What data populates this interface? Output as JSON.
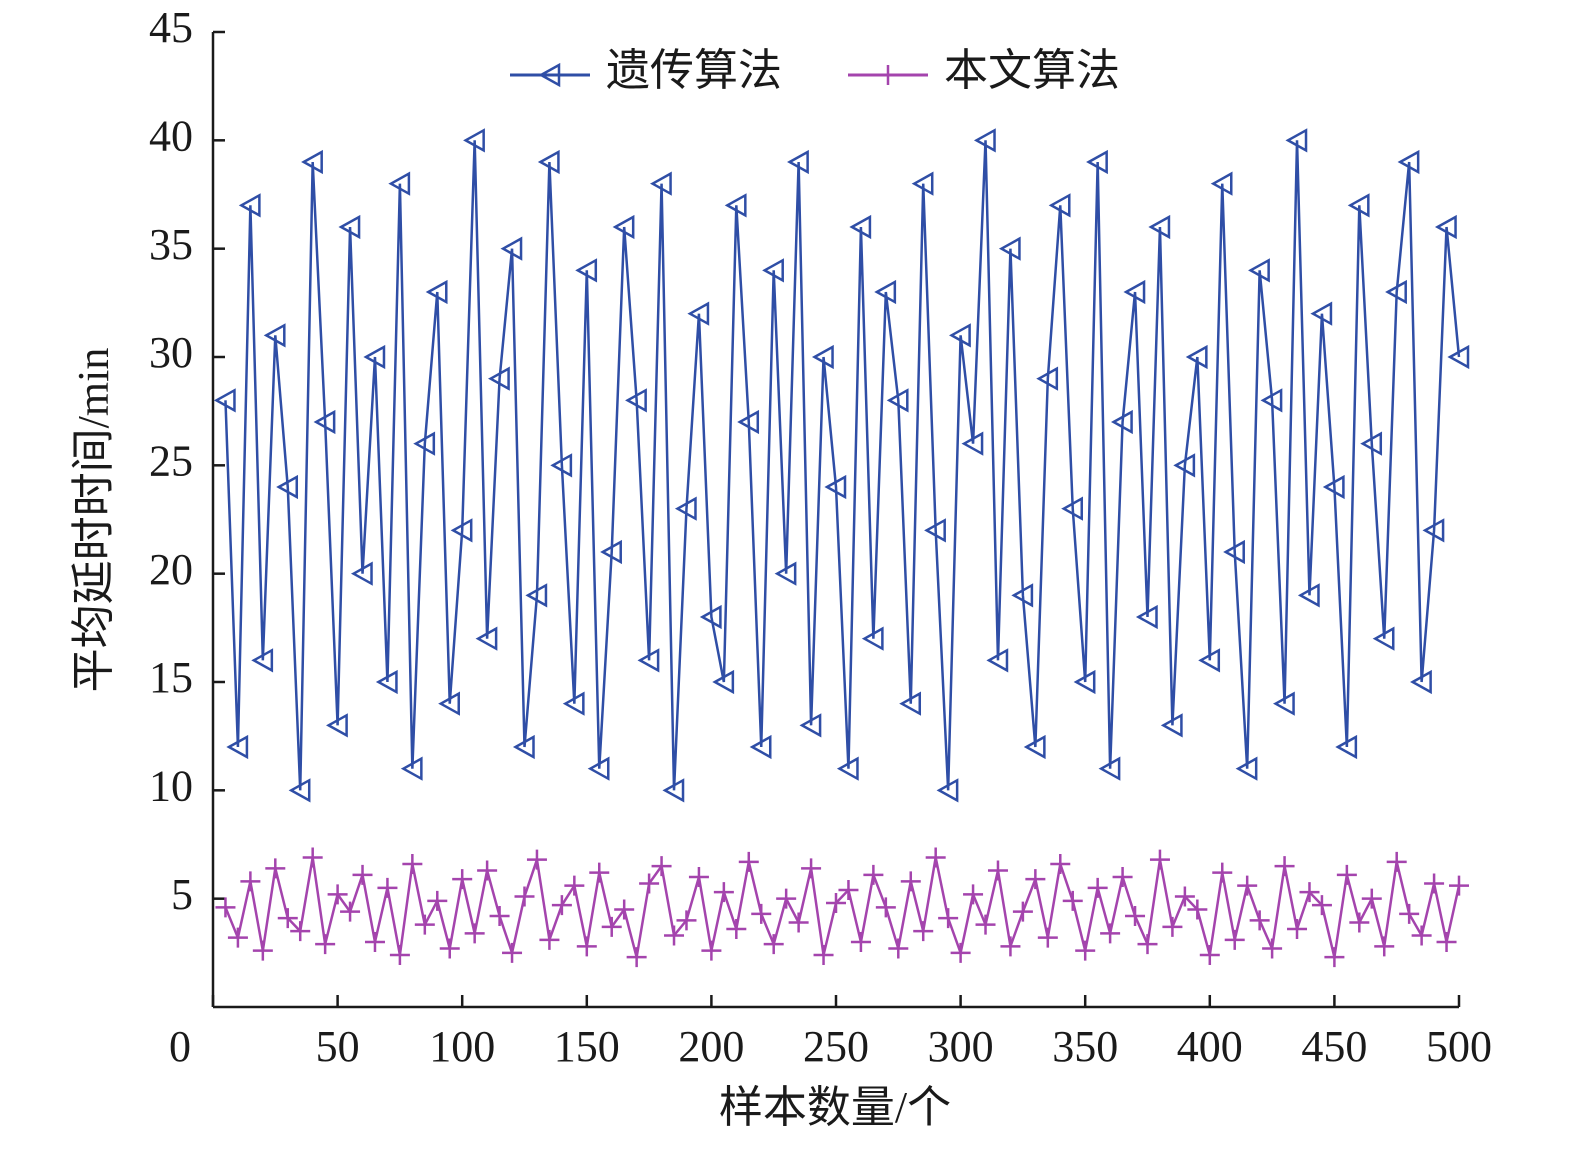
{
  "chart_data": {
    "type": "line",
    "xlabel": "样本数量/个",
    "ylabel": "平均延时时间/min",
    "x": [
      5,
      10,
      15,
      20,
      25,
      30,
      35,
      40,
      45,
      50,
      55,
      60,
      65,
      70,
      75,
      80,
      85,
      90,
      95,
      100,
      105,
      110,
      115,
      120,
      125,
      130,
      135,
      140,
      145,
      150,
      155,
      160,
      165,
      170,
      175,
      180,
      185,
      190,
      195,
      200,
      205,
      210,
      215,
      220,
      225,
      230,
      235,
      240,
      245,
      250,
      255,
      260,
      265,
      270,
      275,
      280,
      285,
      290,
      295,
      300,
      305,
      310,
      315,
      320,
      325,
      330,
      335,
      340,
      345,
      350,
      355,
      360,
      365,
      370,
      375,
      380,
      385,
      390,
      395,
      400,
      405,
      410,
      415,
      420,
      425,
      430,
      435,
      440,
      445,
      450,
      455,
      460,
      465,
      470,
      475,
      480,
      485,
      490,
      495,
      500
    ],
    "series": [
      {
        "name": "遗传算法",
        "color": "#2f4ea6",
        "marker": "triangle-left",
        "values": [
          28,
          12,
          37,
          16,
          31,
          24,
          10,
          39,
          27,
          13,
          36,
          20,
          30,
          15,
          38,
          11,
          26,
          33,
          14,
          22,
          40,
          17,
          29,
          35,
          12,
          19,
          39,
          25,
          14,
          34,
          11,
          21,
          36,
          28,
          16,
          38,
          10,
          23,
          32,
          18,
          15,
          37,
          27,
          12,
          34,
          20,
          39,
          13,
          30,
          24,
          11,
          36,
          17,
          33,
          28,
          14,
          38,
          22,
          10,
          31,
          26,
          40,
          16,
          35,
          19,
          12,
          29,
          37,
          23,
          15,
          39,
          11,
          27,
          33,
          18,
          36,
          13,
          25,
          30,
          16,
          38,
          21,
          11,
          34,
          28,
          14,
          40,
          19,
          32,
          24,
          12,
          37,
          26,
          17,
          33,
          39,
          15,
          22,
          36,
          30
        ]
      },
      {
        "name": "本文算法",
        "color": "#a444ad",
        "marker": "plus",
        "values": [
          4.6,
          3.2,
          5.8,
          2.6,
          6.4,
          4.1,
          3.5,
          6.9,
          2.9,
          5.2,
          4.4,
          6.1,
          3.0,
          5.5,
          2.4,
          6.6,
          3.8,
          4.9,
          2.7,
          5.9,
          3.4,
          6.3,
          4.2,
          2.5,
          5.1,
          6.8,
          3.1,
          4.7,
          5.6,
          2.8,
          6.2,
          3.7,
          4.5,
          2.3,
          5.7,
          6.5,
          3.3,
          4.0,
          6.0,
          2.6,
          5.3,
          3.6,
          6.7,
          4.3,
          2.9,
          5.0,
          3.9,
          6.4,
          2.4,
          4.8,
          5.4,
          3.0,
          6.1,
          4.6,
          2.7,
          5.8,
          3.5,
          6.9,
          4.1,
          2.5,
          5.2,
          3.8,
          6.3,
          2.8,
          4.4,
          5.9,
          3.2,
          6.6,
          4.9,
          2.6,
          5.5,
          3.4,
          6.0,
          4.2,
          2.9,
          6.8,
          3.7,
          5.1,
          4.5,
          2.4,
          6.2,
          3.1,
          5.6,
          4.0,
          2.7,
          6.5,
          3.6,
          5.3,
          4.7,
          2.3,
          6.1,
          3.9,
          5.0,
          2.8,
          6.7,
          4.3,
          3.3,
          5.7,
          3.0,
          5.6
        ]
      }
    ],
    "xlim": [
      0,
      500
    ],
    "xticks": [
      0,
      50,
      100,
      150,
      200,
      250,
      300,
      350,
      400,
      450,
      500
    ],
    "ylim": [
      0,
      45
    ],
    "yticks": [
      5,
      10,
      15,
      20,
      25,
      30,
      35,
      40,
      45
    ],
    "legend": "top"
  }
}
